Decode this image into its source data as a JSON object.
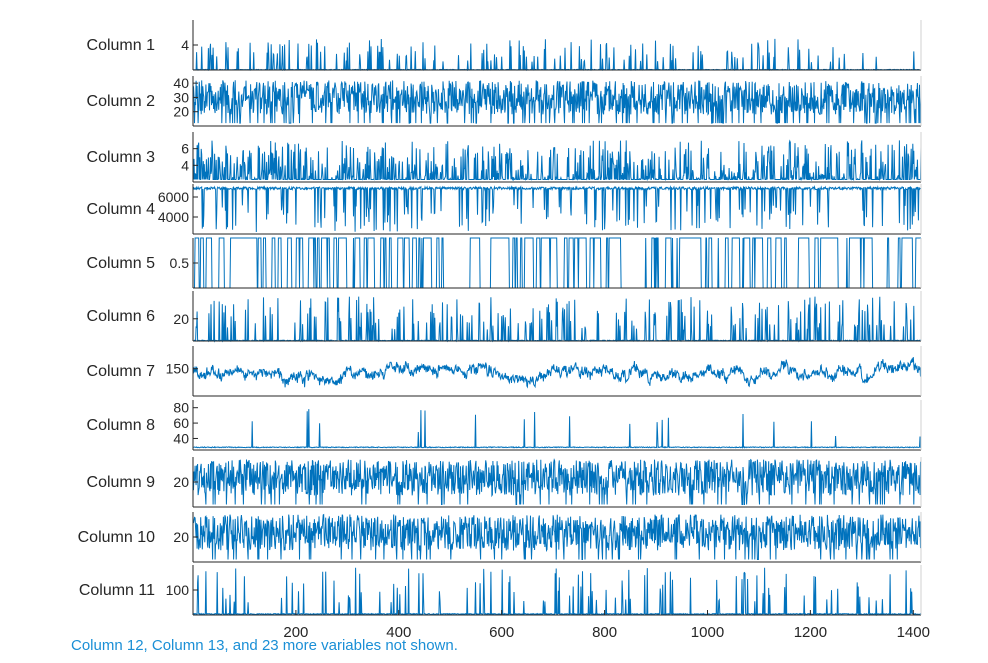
{
  "chart_data": {
    "type": "line",
    "plot_kind": "stackedplot",
    "line_color": "#0072BD",
    "xlim": [
      0,
      1415
    ],
    "x_ticks": [
      200,
      400,
      600,
      800,
      1000,
      1200,
      1400
    ],
    "grid": false,
    "panels": [
      {
        "name": "Column 1",
        "ticks": [
          "4"
        ],
        "tick_values": [
          4
        ],
        "ylim": [
          0,
          8
        ],
        "pattern": "spikes",
        "base": 0,
        "peak": 5,
        "density": 0.1
      },
      {
        "name": "Column 2",
        "ticks": [
          "40",
          "30",
          "20"
        ],
        "tick_values": [
          40,
          30,
          20
        ],
        "ylim": [
          10,
          45
        ],
        "pattern": "dense",
        "base": 12,
        "peak": 42,
        "density": 0.9
      },
      {
        "name": "Column 3",
        "ticks": [
          "6",
          "4"
        ],
        "tick_values": [
          6,
          4
        ],
        "ylim": [
          2,
          8
        ],
        "pattern": "noise",
        "base": 2.3,
        "peak": 7,
        "density": 0.45
      },
      {
        "name": "Column 4",
        "ticks": [
          "6000",
          "4000"
        ],
        "tick_values": [
          6000,
          4000
        ],
        "ylim": [
          2300,
          7300
        ],
        "pattern": "dips",
        "base": 7000,
        "peak": 2500,
        "density": 0.12
      },
      {
        "name": "Column 5",
        "ticks": [
          "0.5"
        ],
        "tick_values": [
          0.5
        ],
        "ylim": [
          0,
          1
        ],
        "pattern": "binary",
        "base": 0,
        "peak": 1,
        "density": 0.5
      },
      {
        "name": "Column 6",
        "ticks": [
          "20"
        ],
        "tick_values": [
          20
        ],
        "ylim": [
          0,
          45
        ],
        "pattern": "spikes",
        "base": 0,
        "peak": 40,
        "density": 0.18
      },
      {
        "name": "Column 7",
        "ticks": [
          "150"
        ],
        "tick_values": [
          150
        ],
        "ylim": [
          90,
          200
        ],
        "pattern": "walk",
        "base": 140,
        "peak": 35,
        "density": 1
      },
      {
        "name": "Column 8",
        "ticks": [
          "80",
          "60",
          "40"
        ],
        "tick_values": [
          80,
          60,
          40
        ],
        "ylim": [
          25,
          90
        ],
        "pattern": "sparse",
        "base": 28,
        "peak": 80,
        "density": 0.02
      },
      {
        "name": "Column 9",
        "ticks": [
          "20"
        ],
        "tick_values": [
          20
        ],
        "ylim": [
          0,
          40
        ],
        "pattern": "dense",
        "base": 2,
        "peak": 38,
        "density": 0.95
      },
      {
        "name": "Column 10",
        "ticks": [
          "20"
        ],
        "tick_values": [
          20
        ],
        "ylim": [
          0,
          40
        ],
        "pattern": "dense",
        "base": 2,
        "peak": 38,
        "density": 0.95
      },
      {
        "name": "Column 11",
        "ticks": [
          "100"
        ],
        "tick_values": [
          100
        ],
        "ylim": [
          0,
          200
        ],
        "pattern": "spikes",
        "base": 2,
        "peak": 190,
        "density": 0.07
      }
    ],
    "footnote": "Column 12, Column 13, and 23 more variables not shown."
  }
}
